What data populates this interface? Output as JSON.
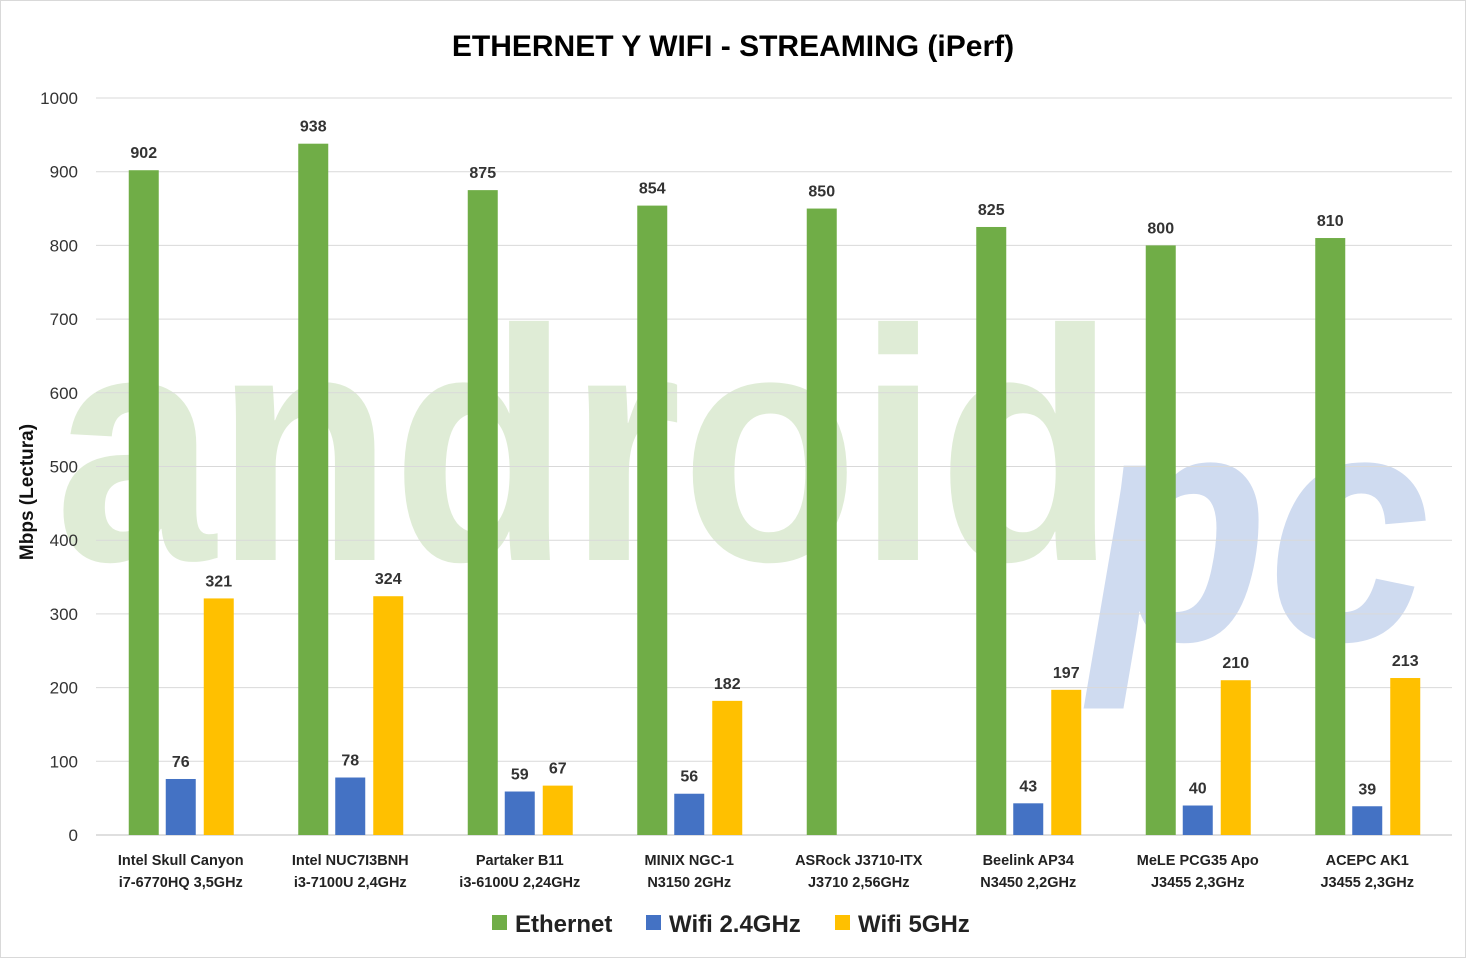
{
  "chart_data": {
    "type": "bar",
    "title": "ETHERNET Y WIFI - STREAMING (iPerf)",
    "xlabel": "",
    "ylabel": "Mbps (Lectura)",
    "ylim": [
      0,
      1000
    ],
    "yticks": [
      0,
      100,
      200,
      300,
      400,
      500,
      600,
      700,
      800,
      900,
      1000
    ],
    "grid": true,
    "legend_position": "bottom",
    "watermark": "androidpc",
    "categories": [
      [
        "Intel Skull Canyon",
        "i7-6770HQ 3,5GHz"
      ],
      [
        "Intel NUC7I3BNH",
        "i3-7100U 2,4GHz"
      ],
      [
        "Partaker B11",
        "i3-6100U 2,24GHz"
      ],
      [
        "MINIX NGC-1",
        "N3150 2GHz"
      ],
      [
        "ASRock J3710-ITX",
        "J3710 2,56GHz"
      ],
      [
        "Beelink AP34",
        "N3450 2,2GHz"
      ],
      [
        "MeLE PCG35 Apo",
        "J3455 2,3GHz"
      ],
      [
        "ACEPC AK1",
        "J3455 2,3GHz"
      ]
    ],
    "series": [
      {
        "name": "Ethernet",
        "color": "#70ad47",
        "values": [
          902,
          938,
          875,
          854,
          850,
          825,
          800,
          810
        ]
      },
      {
        "name": "Wifi 2.4GHz",
        "color": "#4472c4",
        "values": [
          76,
          78,
          59,
          56,
          null,
          43,
          40,
          39
        ]
      },
      {
        "name": "Wifi 5GHz",
        "color": "#ffc000",
        "values": [
          321,
          324,
          67,
          182,
          null,
          197,
          210,
          213
        ]
      }
    ]
  }
}
